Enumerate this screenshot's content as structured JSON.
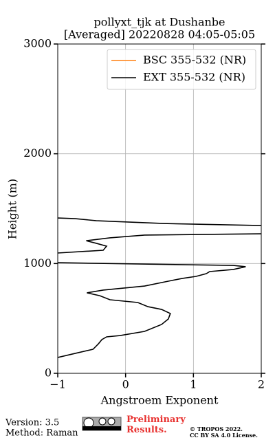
{
  "chart_data": {
    "type": "profile",
    "title": [
      "pollyxt_tjk at Dushanbe",
      "[Averaged] 20220828 04:05-05:05"
    ],
    "xlabel": "Angstroem Exponent",
    "ylabel": "Height (m)",
    "xlim": [
      -1,
      2
    ],
    "ylim": [
      0,
      3000
    ],
    "xticks": [
      {
        "value": -1,
        "label": "−1"
      },
      0,
      1,
      2
    ],
    "yticks": [
      0,
      1000,
      2000,
      3000
    ],
    "grid": true,
    "legend": "upper right",
    "heights": [
      144,
      182,
      219,
      269,
      307,
      332,
      344,
      382,
      445,
      495,
      545,
      582,
      607,
      645,
      670,
      707,
      733,
      758,
      795,
      833,
      864,
      883,
      908,
      927,
      946,
      971,
      983,
      996,
      1008,
      null,
      1096,
      1121,
      1158,
      1184,
      1208,
      1234,
      1259,
      1271,
      null,
      1346,
      1365,
      1390,
      1409,
      1415
    ],
    "series": [
      {
        "name": "BSC 355-532 (NR)",
        "color": "#ff7f0e",
        "values": [
          null,
          null,
          null,
          null,
          null,
          null,
          null,
          null,
          null,
          null,
          null,
          null,
          null,
          null,
          null,
          null,
          null,
          null,
          null,
          null,
          null,
          null,
          null,
          null,
          null,
          null,
          null,
          null,
          null,
          null,
          null,
          null,
          null,
          null,
          null,
          null,
          null,
          null,
          null,
          null,
          null,
          null,
          null,
          null
        ]
      },
      {
        "name": "EXT 355-532 (NR)",
        "color": "#000000",
        "values": [
          -1.0,
          -0.74,
          -0.48,
          -0.4,
          -0.35,
          -0.28,
          -0.08,
          0.28,
          0.53,
          0.63,
          0.66,
          0.53,
          0.33,
          0.18,
          -0.23,
          -0.38,
          -0.57,
          -0.33,
          0.28,
          0.58,
          0.83,
          1.04,
          1.19,
          1.24,
          1.59,
          1.77,
          1.59,
          0.18,
          -1.0,
          null,
          -1.0,
          -0.33,
          -0.28,
          -0.43,
          -0.58,
          -0.23,
          0.28,
          2.0,
          null,
          2.0,
          0.56,
          -0.43,
          -0.74,
          -1.0
        ]
      }
    ]
  },
  "footer": {
    "version": "Version: 3.5",
    "method": "Method: Raman",
    "preliminary": "Preliminary Results.",
    "copyright": "© TROPOS 2022.",
    "license": "CC BY SA 4.0 License."
  }
}
